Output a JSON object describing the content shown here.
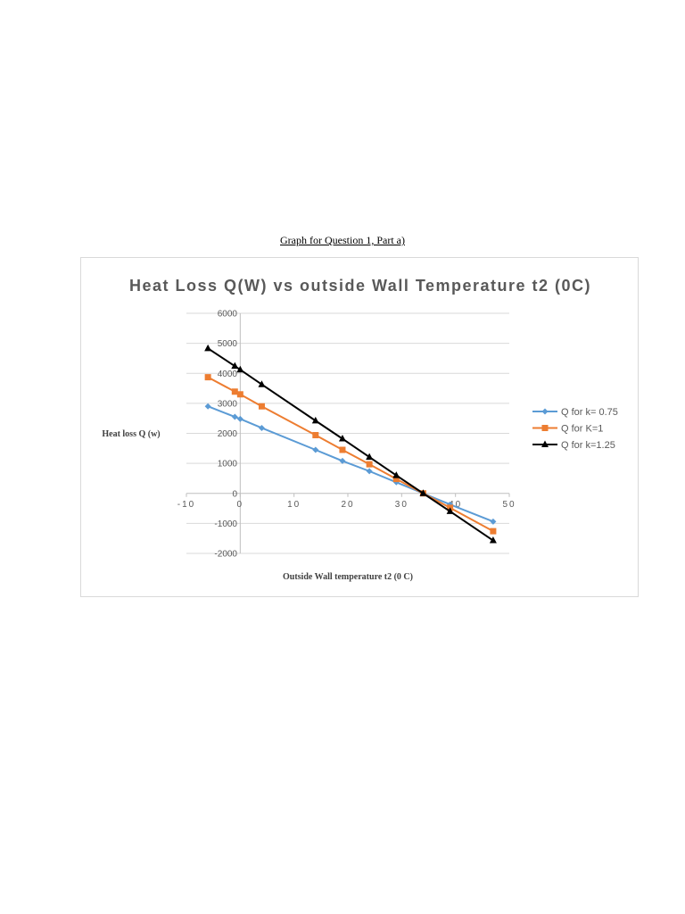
{
  "caption": "Graph for Question 1, Part a)",
  "chart_data": {
    "type": "line",
    "title": "Heat Loss Q(W) vs outside Wall Temperature t2 (0C)",
    "xlabel": "Outside Wall temperature t2 (0 C)",
    "ylabel": "Heat loss Q (w)",
    "xlim": [
      -10,
      50
    ],
    "ylim": [
      -2000,
      6000
    ],
    "xticks": [
      "-10",
      "0",
      "10",
      "20",
      "30",
      "40",
      "50"
    ],
    "yticks": [
      "6000",
      "5000",
      "4000",
      "3000",
      "2000",
      "1000",
      "0",
      "-1000",
      "-2000"
    ],
    "grid": true,
    "legend_position": "right",
    "series": [
      {
        "name": "Q for k= 0.75",
        "color": "#5b9bd5",
        "marker": "diamond",
        "x": [
          -6,
          -1,
          0,
          4,
          14,
          19,
          24,
          29,
          34,
          39,
          47
        ],
        "y": [
          2900,
          2550,
          2480,
          2180,
          1450,
          1080,
          740,
          370,
          0,
          -370,
          -940
        ]
      },
      {
        "name": "Q for K=1",
        "color": "#ed7d31",
        "marker": "square",
        "x": [
          -6,
          -1,
          0,
          4,
          14,
          19,
          24,
          29,
          34,
          39,
          47
        ],
        "y": [
          3870,
          3390,
          3300,
          2900,
          1940,
          1450,
          970,
          480,
          0,
          -480,
          -1260
        ]
      },
      {
        "name": "Q for k=1.25",
        "color": "#000000",
        "marker": "triangle",
        "x": [
          -6,
          -1,
          0,
          4,
          14,
          19,
          24,
          29,
          34,
          39,
          47
        ],
        "y": [
          4830,
          4240,
          4120,
          3630,
          2420,
          1820,
          1210,
          600,
          0,
          -600,
          -1570
        ]
      }
    ]
  }
}
